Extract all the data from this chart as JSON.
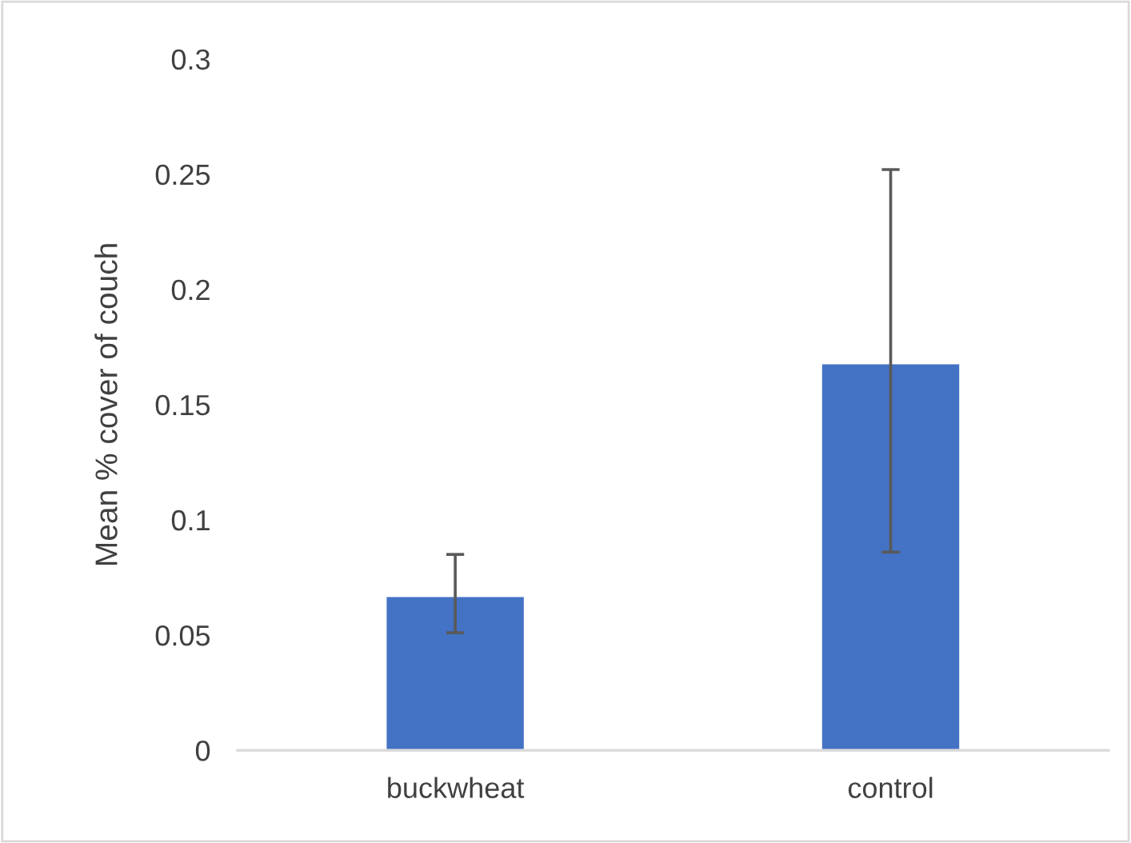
{
  "chart_data": {
    "type": "bar",
    "ylabel": "Mean % cover of couch",
    "categories": [
      "buckwheat",
      "control"
    ],
    "values": [
      0.067,
      0.168
    ],
    "errors": [
      [
        0.051,
        0.085
      ],
      [
        0.086,
        0.252
      ]
    ],
    "color": "#4472c4",
    "ylim": [
      0,
      0.3
    ],
    "yticks": [
      {
        "value": 0,
        "label": "0"
      },
      0.05,
      0.1,
      0.15,
      0.2,
      0.25,
      0.3
    ],
    "grid": false,
    "legend": false
  }
}
